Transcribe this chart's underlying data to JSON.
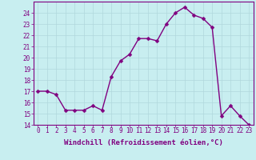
{
  "x": [
    0,
    1,
    2,
    3,
    4,
    5,
    6,
    7,
    8,
    9,
    10,
    11,
    12,
    13,
    14,
    15,
    16,
    17,
    18,
    19,
    20,
    21,
    22,
    23
  ],
  "y": [
    17.0,
    17.0,
    16.7,
    15.3,
    15.3,
    15.3,
    15.7,
    15.3,
    18.3,
    19.7,
    20.3,
    21.7,
    21.7,
    21.5,
    23.0,
    24.0,
    24.5,
    23.8,
    23.5,
    22.7,
    14.8,
    15.7,
    14.8,
    14.0
  ],
  "line_color": "#800080",
  "marker_color": "#800080",
  "bg_color": "#c8eef0",
  "grid_color": "#b0d8dc",
  "xlabel": "Windchill (Refroidissement éolien,°C)",
  "xlim": [
    -0.5,
    23.5
  ],
  "ylim": [
    14,
    25
  ],
  "yticks": [
    14,
    15,
    16,
    17,
    18,
    19,
    20,
    21,
    22,
    23,
    24
  ],
  "xticks": [
    0,
    1,
    2,
    3,
    4,
    5,
    6,
    7,
    8,
    9,
    10,
    11,
    12,
    13,
    14,
    15,
    16,
    17,
    18,
    19,
    20,
    21,
    22,
    23
  ],
  "xlabel_fontsize": 6.5,
  "tick_fontsize": 5.5,
  "line_width": 1.0,
  "marker_size": 2.5
}
